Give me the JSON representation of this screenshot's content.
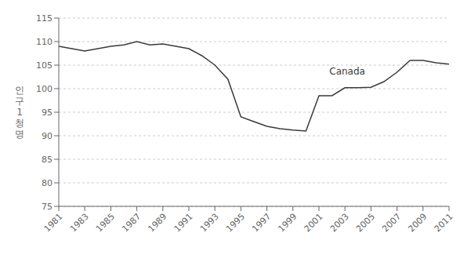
{
  "chart_data": {
    "type": "line",
    "x": [
      1981,
      1982,
      1983,
      1984,
      1985,
      1986,
      1987,
      1988,
      1989,
      1990,
      1991,
      1992,
      1993,
      1994,
      1995,
      1996,
      1997,
      1998,
      1999,
      2000,
      2001,
      2002,
      2003,
      2004,
      2005,
      2006,
      2007,
      2008,
      2009,
      2010,
      2011
    ],
    "values": [
      109.0,
      108.5,
      108.0,
      108.5,
      109.0,
      109.3,
      110.0,
      109.3,
      109.5,
      109.0,
      108.5,
      107.0,
      105.0,
      102.0,
      94.0,
      93.0,
      92.0,
      91.5,
      91.2,
      91.0,
      98.5,
      98.5,
      100.2,
      100.2,
      100.3,
      101.5,
      103.5,
      106.0,
      106.0,
      105.5,
      105.2
    ],
    "color": "#3a3a3a",
    "annotations": [
      {
        "text": "Canada",
        "x": 2001.8,
        "y": 103.0
      }
    ],
    "ylabel": "인\n구\n1\n청\n명",
    "xlim": [
      1981,
      2011
    ],
    "xticks": [
      1981,
      1983,
      1985,
      1987,
      1989,
      1991,
      1993,
      1995,
      1997,
      1999,
      2001,
      2003,
      2005,
      2007,
      2009,
      2011
    ],
    "ylim": [
      75,
      115
    ],
    "yticks": [
      75,
      80,
      85,
      90,
      95,
      100,
      105,
      110,
      115
    ],
    "grid": true
  }
}
